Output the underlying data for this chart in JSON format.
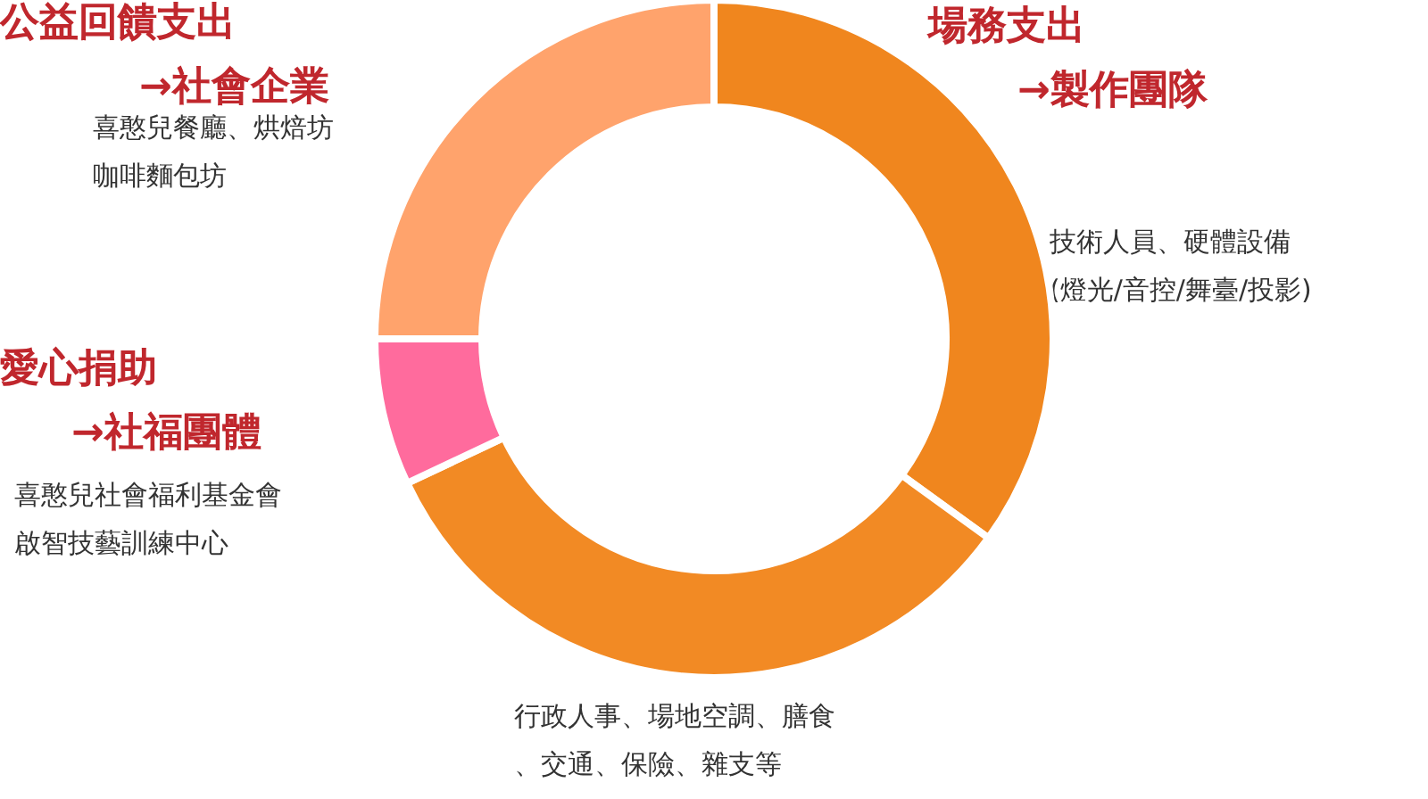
{
  "chart_data": {
    "type": "donut",
    "categories": [
      "場務支出\n→製作團隊",
      null,
      "愛心捐助\n→社福團體",
      "公益回饋支出\n→社會企業"
    ],
    "values": [
      35,
      33,
      7,
      25
    ],
    "colors": [
      "#f0861e",
      "#f28a24",
      "#ff6b9d",
      "#ffa36c"
    ],
    "annotations": [
      "技術人員、硬體設備",
      "(燈光/音控/舞臺/投影)",
      "行政人事、場地空調、膳食",
      "、交通、保險、雜支等",
      "喜憨兒社會福利基金會",
      "啟智技藝訓練中心",
      "喜憨兒餐廳、烘焙坊",
      "咖啡麵包坊"
    ],
    "legend": false
  }
}
